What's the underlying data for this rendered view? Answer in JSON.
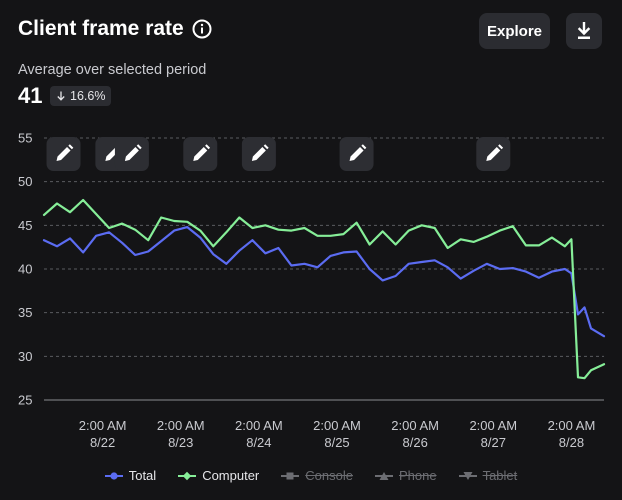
{
  "header": {
    "title": "Client frame rate",
    "explore_label": "Explore",
    "subtitle": "Average over selected period",
    "value": "41",
    "delta": "16.6%"
  },
  "icons": {
    "info": "info-icon",
    "download": "download-icon",
    "annotation": "pencil-icon",
    "delta": "arrow-down-icon"
  },
  "colors": {
    "total": "#5b6cf2",
    "computer": "#86ee98",
    "background": "#141416",
    "grid": "#5a5b60"
  },
  "chart_data": {
    "type": "line",
    "title": "Client frame rate",
    "ylim": [
      25,
      55
    ],
    "yticks": [
      25,
      30,
      35,
      40,
      45,
      50,
      55
    ],
    "xlim": [
      "8/21 08:00",
      "8/28 12:00"
    ],
    "xticks": [
      {
        "time": "8/22 02:00",
        "label_time": "2:00 AM",
        "label_date": "8/22"
      },
      {
        "time": "8/23 02:00",
        "label_time": "2:00 AM",
        "label_date": "8/23"
      },
      {
        "time": "8/24 02:00",
        "label_time": "2:00 AM",
        "label_date": "8/24"
      },
      {
        "time": "8/25 02:00",
        "label_time": "2:00 AM",
        "label_date": "8/25"
      },
      {
        "time": "8/26 02:00",
        "label_time": "2:00 AM",
        "label_date": "8/26"
      },
      {
        "time": "8/27 02:00",
        "label_time": "2:00 AM",
        "label_date": "8/27"
      },
      {
        "time": "8/28 02:00",
        "label_time": "2:00 AM",
        "label_date": "8/28"
      }
    ],
    "x": [
      "8/21 08:00",
      "8/21 12:00",
      "8/21 16:00",
      "8/21 20:00",
      "8/22 00:00",
      "8/22 04:00",
      "8/22 08:00",
      "8/22 12:00",
      "8/22 16:00",
      "8/22 20:00",
      "8/23 00:00",
      "8/23 04:00",
      "8/23 08:00",
      "8/23 12:00",
      "8/23 16:00",
      "8/23 20:00",
      "8/24 00:00",
      "8/24 04:00",
      "8/24 08:00",
      "8/24 12:00",
      "8/24 16:00",
      "8/24 20:00",
      "8/25 00:00",
      "8/25 04:00",
      "8/25 08:00",
      "8/25 12:00",
      "8/25 16:00",
      "8/25 20:00",
      "8/26 00:00",
      "8/26 04:00",
      "8/26 08:00",
      "8/26 12:00",
      "8/26 16:00",
      "8/26 20:00",
      "8/27 00:00",
      "8/27 04:00",
      "8/27 08:00",
      "8/27 12:00",
      "8/27 16:00",
      "8/27 20:00",
      "8/28 00:00",
      "8/28 02:00",
      "8/28 04:00",
      "8/28 06:00",
      "8/28 08:00",
      "8/28 12:00"
    ],
    "series": [
      {
        "name": "Total",
        "color": "#5b6cf2",
        "values": [
          43.3,
          42.6,
          43.5,
          41.9,
          43.8,
          44.2,
          43.0,
          41.6,
          42.0,
          43.2,
          44.4,
          44.8,
          43.6,
          41.7,
          40.6,
          42.1,
          43.3,
          41.8,
          42.4,
          40.4,
          40.6,
          40.2,
          41.5,
          41.9,
          42.0,
          40.0,
          38.7,
          39.2,
          40.6,
          40.8,
          41.0,
          40.2,
          38.9,
          39.8,
          40.6,
          40.0,
          40.1,
          39.7,
          39.0,
          39.7,
          40.0,
          39.5,
          34.8,
          35.6,
          33.2,
          32.3
        ]
      },
      {
        "name": "Computer",
        "color": "#86ee98",
        "values": [
          46.2,
          47.5,
          46.5,
          47.9,
          46.3,
          44.7,
          45.2,
          44.5,
          43.3,
          45.9,
          45.5,
          45.4,
          44.4,
          42.6,
          44.2,
          45.9,
          44.7,
          45.0,
          44.5,
          44.4,
          44.7,
          43.8,
          43.8,
          44.0,
          45.3,
          42.8,
          44.3,
          42.8,
          44.4,
          45.0,
          44.7,
          42.4,
          43.4,
          43.1,
          43.7,
          44.4,
          44.9,
          42.7,
          42.7,
          43.6,
          42.6,
          43.4,
          27.6,
          27.5,
          28.4,
          29.1
        ]
      },
      {
        "name": "Console",
        "disabled": true
      },
      {
        "name": "Phone",
        "disabled": true
      },
      {
        "name": "Tablet",
        "disabled": true
      }
    ],
    "annotations": [
      "8/21 14:00",
      "8/22 05:00",
      "8/22 11:00",
      "8/23 08:00",
      "8/24 02:00",
      "8/25 08:00",
      "8/27 02:00"
    ],
    "grid": true,
    "legend_position": "bottom"
  }
}
